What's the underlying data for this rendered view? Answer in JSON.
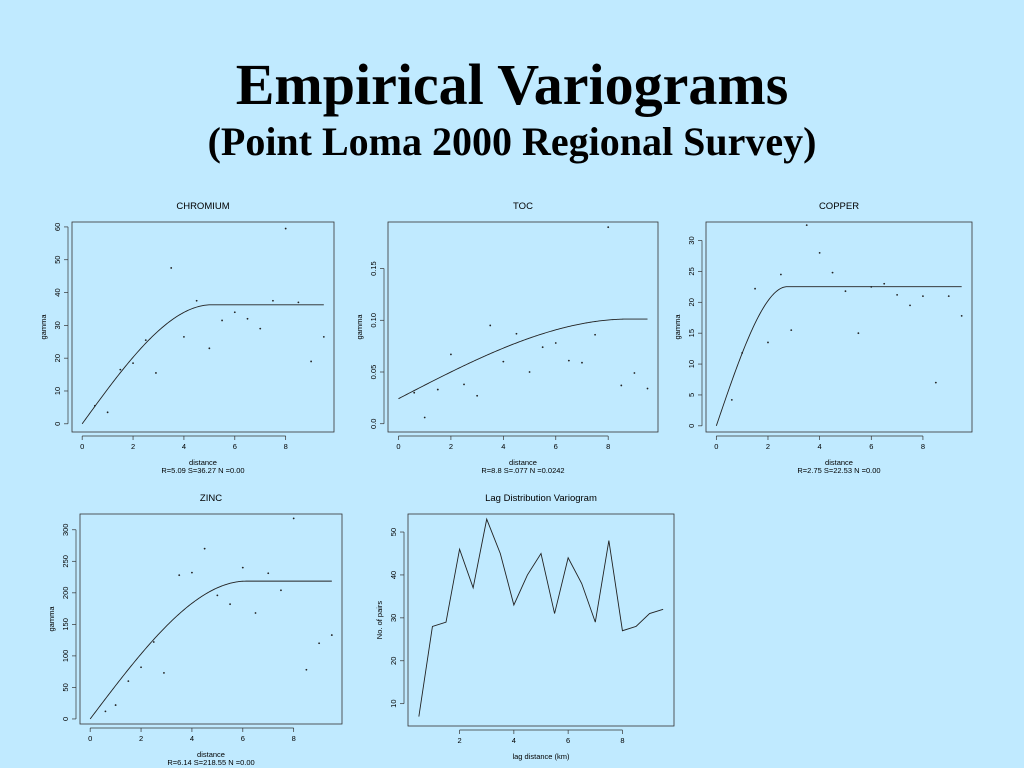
{
  "page": {
    "title": "Empirical Variograms",
    "subtitle": "(Point Loma 2000 Regional Survey)"
  },
  "chart_data": [
    {
      "id": "chromium",
      "type": "scatter",
      "title": "CHROMIUM",
      "xlabel": "distance",
      "ylabel": "gamma",
      "caption": "R=5.09 S=36.27 N =0.00",
      "xlim": [
        -0.4,
        9.9
      ],
      "ylim": [
        -2.5,
        61.5
      ],
      "xticks": [
        0,
        2,
        4,
        6,
        8
      ],
      "yticks": [
        0,
        10,
        20,
        30,
        40,
        50,
        60
      ],
      "points": [
        [
          0.5,
          5.5
        ],
        [
          1.0,
          3.5
        ],
        [
          1.5,
          16.5
        ],
        [
          2.0,
          18.5
        ],
        [
          2.5,
          25.5
        ],
        [
          2.9,
          15.5
        ],
        [
          3.5,
          47.5
        ],
        [
          4.0,
          26.5
        ],
        [
          4.5,
          37.5
        ],
        [
          5.0,
          23.0
        ],
        [
          5.5,
          31.5
        ],
        [
          6.0,
          34.0
        ],
        [
          6.5,
          32.0
        ],
        [
          7.0,
          29.0
        ],
        [
          7.5,
          37.5
        ],
        [
          8.0,
          59.5
        ],
        [
          8.5,
          37.0
        ],
        [
          9.0,
          19.0
        ],
        [
          9.5,
          26.5
        ]
      ],
      "model": {
        "type": "spherical",
        "nugget": 0,
        "range": 5.09,
        "sill": 36.27,
        "xmax": 9.5
      }
    },
    {
      "id": "toc",
      "type": "scatter",
      "title": "TOC",
      "xlabel": "distance",
      "ylabel": "gamma",
      "caption": "R=8.8 S=.077 N =0.0242",
      "xlim": [
        -0.4,
        9.9
      ],
      "ylim": [
        -0.008,
        0.195
      ],
      "xticks": [
        0,
        2,
        4,
        6,
        8
      ],
      "yticks": [
        0.0,
        0.05,
        0.1,
        0.15
      ],
      "ytick_labels": [
        "0.0",
        "0.05",
        "0.10",
        "0.15"
      ],
      "points": [
        [
          0.6,
          0.03
        ],
        [
          1.0,
          0.006
        ],
        [
          1.5,
          0.033
        ],
        [
          2.0,
          0.067
        ],
        [
          2.5,
          0.038
        ],
        [
          3.0,
          0.027
        ],
        [
          3.5,
          0.095
        ],
        [
          4.0,
          0.06
        ],
        [
          4.5,
          0.087
        ],
        [
          5.0,
          0.05
        ],
        [
          5.5,
          0.074
        ],
        [
          6.0,
          0.078
        ],
        [
          6.5,
          0.061
        ],
        [
          7.0,
          0.059
        ],
        [
          7.5,
          0.086
        ],
        [
          8.0,
          0.19
        ],
        [
          8.5,
          0.037
        ],
        [
          9.0,
          0.049
        ],
        [
          9.5,
          0.034
        ]
      ],
      "model": {
        "type": "spherical",
        "nugget": 0.0242,
        "range": 8.8,
        "sill": 0.077,
        "xmax": 9.5
      }
    },
    {
      "id": "copper",
      "type": "scatter",
      "title": "COPPER",
      "xlabel": "distance",
      "ylabel": "gamma",
      "caption": "R=2.75 S=22.53 N =0.00",
      "xlim": [
        -0.4,
        9.9
      ],
      "ylim": [
        -1.0,
        33.0
      ],
      "xticks": [
        0,
        2,
        4,
        6,
        8
      ],
      "yticks": [
        0,
        5,
        10,
        15,
        20,
        25,
        30
      ],
      "points": [
        [
          0.6,
          4.2
        ],
        [
          1.0,
          11.8
        ],
        [
          1.5,
          22.2
        ],
        [
          2.0,
          13.5
        ],
        [
          2.5,
          24.5
        ],
        [
          2.9,
          15.5
        ],
        [
          3.5,
          32.5
        ],
        [
          4.0,
          28.0
        ],
        [
          4.5,
          24.8
        ],
        [
          5.0,
          21.8
        ],
        [
          5.5,
          15.0
        ],
        [
          6.0,
          22.5
        ],
        [
          6.5,
          23.0
        ],
        [
          7.0,
          21.2
        ],
        [
          7.5,
          19.5
        ],
        [
          8.0,
          21.0
        ],
        [
          8.5,
          7.0
        ],
        [
          9.0,
          21.0
        ],
        [
          9.5,
          17.8
        ]
      ],
      "model": {
        "type": "spherical",
        "nugget": 0,
        "range": 2.75,
        "sill": 22.53,
        "xmax": 9.5
      }
    },
    {
      "id": "zinc",
      "type": "scatter",
      "title": "ZINC",
      "xlabel": "distance",
      "ylabel": "gamma",
      "caption": "R=6.14 S=218.55 N =0.00",
      "xlim": [
        -0.4,
        9.9
      ],
      "ylim": [
        -8,
        325
      ],
      "xticks": [
        0,
        2,
        4,
        6,
        8
      ],
      "yticks": [
        0,
        50,
        100,
        150,
        200,
        250,
        300
      ],
      "points": [
        [
          0.6,
          12
        ],
        [
          1.0,
          22
        ],
        [
          1.5,
          60
        ],
        [
          2.0,
          82
        ],
        [
          2.5,
          122
        ],
        [
          2.9,
          73
        ],
        [
          3.5,
          228
        ],
        [
          4.0,
          232
        ],
        [
          4.5,
          270
        ],
        [
          5.0,
          196
        ],
        [
          5.5,
          182
        ],
        [
          6.0,
          240
        ],
        [
          6.5,
          168
        ],
        [
          7.0,
          231
        ],
        [
          7.5,
          204
        ],
        [
          8.0,
          318
        ],
        [
          8.5,
          78
        ],
        [
          9.0,
          120
        ],
        [
          9.5,
          133
        ]
      ],
      "model": {
        "type": "spherical",
        "nugget": 0,
        "range": 6.14,
        "sill": 218.55,
        "xmax": 9.5
      }
    },
    {
      "id": "lagdist",
      "type": "line",
      "title": "Lag Distribution Variogram",
      "xlabel": "lag distance (km)",
      "ylabel": "No. of pairs",
      "caption": "",
      "xlim": [
        0.1,
        9.9
      ],
      "ylim": [
        4.8,
        54.2
      ],
      "xticks": [
        2,
        4,
        6,
        8
      ],
      "yticks": [
        10,
        20,
        30,
        40,
        50
      ],
      "points": [
        [
          0.5,
          7
        ],
        [
          1.0,
          28
        ],
        [
          1.5,
          29
        ],
        [
          2.0,
          46
        ],
        [
          2.5,
          37
        ],
        [
          3.0,
          53
        ],
        [
          3.5,
          45
        ],
        [
          4.0,
          33
        ],
        [
          4.5,
          40
        ],
        [
          5.0,
          45
        ],
        [
          5.5,
          31
        ],
        [
          6.0,
          44
        ],
        [
          6.5,
          38
        ],
        [
          7.0,
          29
        ],
        [
          7.5,
          48
        ],
        [
          8.0,
          27
        ],
        [
          8.5,
          28
        ],
        [
          9.0,
          31
        ],
        [
          9.5,
          32
        ]
      ]
    }
  ]
}
